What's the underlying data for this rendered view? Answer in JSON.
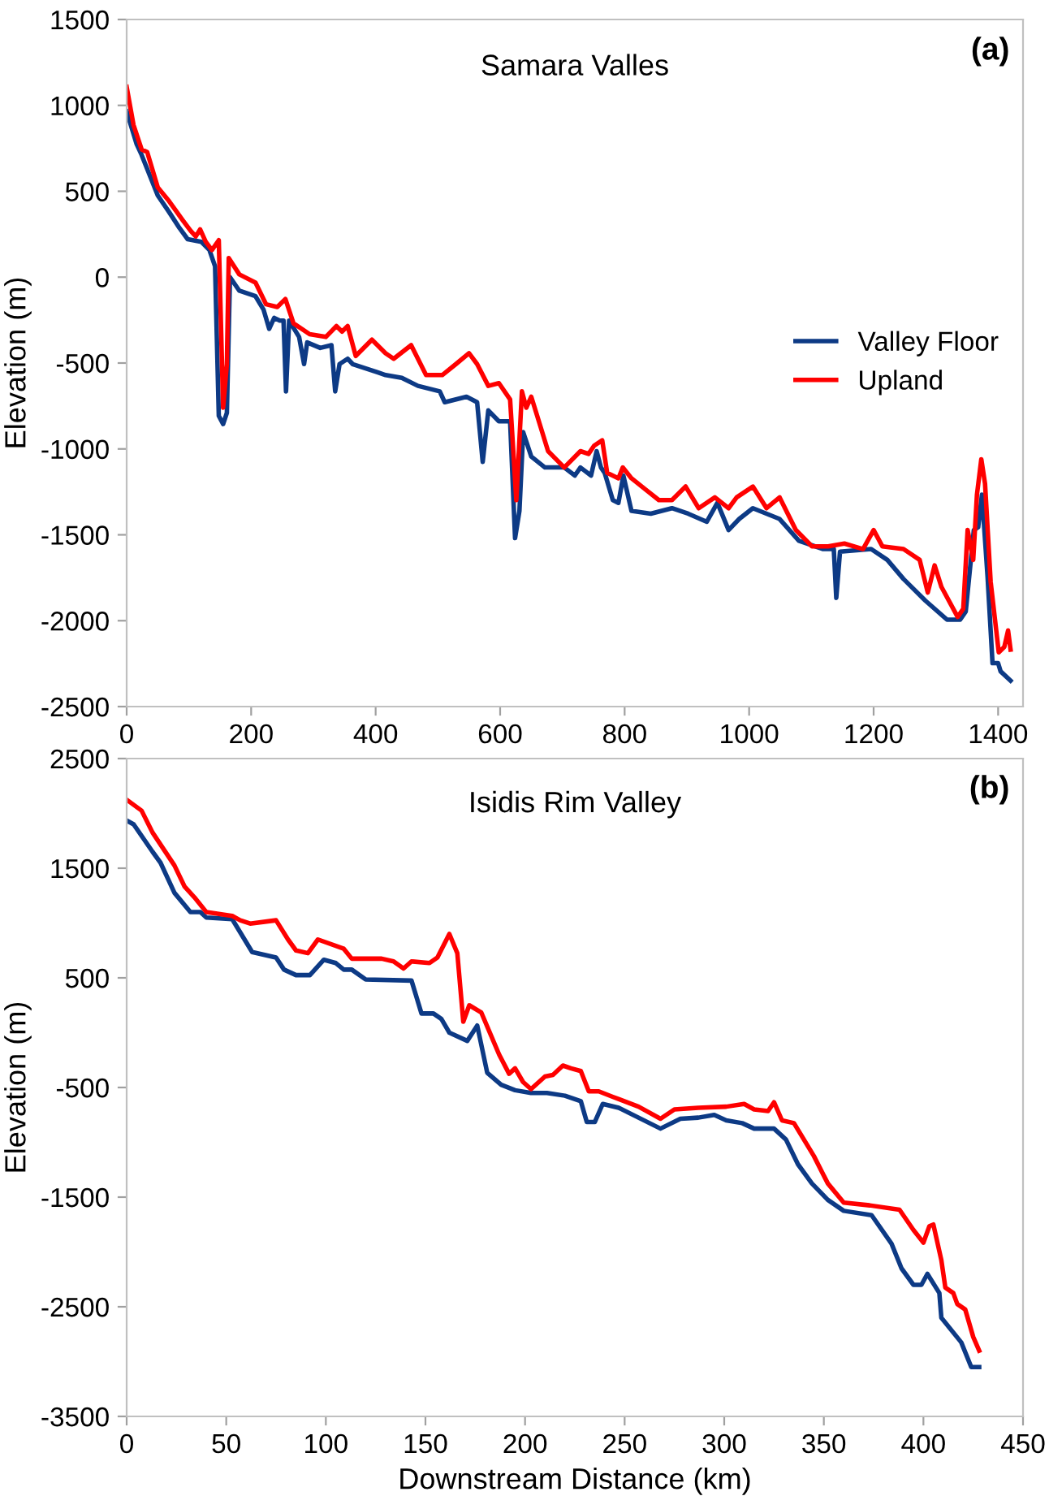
{
  "chart_data": [
    {
      "type": "line",
      "title": "Samara Valles",
      "ylabel": "Elevation (m)",
      "annotations": [
        "(a)"
      ],
      "legend": "center right",
      "grid": false,
      "xlim": [
        0,
        1440
      ],
      "xticks": [
        0,
        200,
        400,
        600,
        800,
        1000,
        1200,
        1400
      ],
      "ylim": [
        -2500,
        1500
      ],
      "yticks": [
        -2500,
        -2000,
        -1500,
        -1000,
        -500,
        0,
        500,
        1000,
        1500
      ],
      "series": [
        {
          "name": "Valley Floor",
          "color": "#0d3a85",
          "x": [
            0,
            16,
            24,
            50,
            68,
            85,
            98,
            120,
            133,
            142,
            148,
            155,
            161,
            166,
            181,
            207,
            220,
            229,
            237,
            246,
            252,
            256,
            261,
            277,
            285,
            290,
            311,
            329,
            335,
            342,
            355,
            363,
            390,
            403,
            416,
            442,
            468,
            503,
            511,
            546,
            563,
            572,
            581,
            598,
            616,
            624,
            631,
            637,
            650,
            672,
            703,
            720,
            729,
            746,
            755,
            762,
            768,
            781,
            790,
            798,
            811,
            842,
            876,
            902,
            932,
            949,
            967,
            984,
            1006,
            1049,
            1080,
            1119,
            1136,
            1140,
            1146,
            1196,
            1222,
            1248,
            1283,
            1318,
            1339,
            1348,
            1361,
            1368,
            1374,
            1383,
            1391,
            1400,
            1404,
            1420
          ],
          "values": [
            965,
            775,
            712,
            475,
            380,
            285,
            221,
            206,
            158,
            63,
            -807,
            -855,
            -790,
            0,
            -79,
            -111,
            -190,
            -301,
            -237,
            -253,
            -253,
            -665,
            -253,
            -348,
            -506,
            -380,
            -412,
            -396,
            -665,
            -506,
            -475,
            -506,
            -538,
            -554,
            -570,
            -586,
            -633,
            -665,
            -728,
            -696,
            -728,
            -1076,
            -776,
            -839,
            -839,
            -1519,
            -1361,
            -902,
            -1044,
            -1108,
            -1108,
            -1155,
            -1108,
            -1155,
            -1013,
            -1108,
            -1140,
            -1298,
            -1314,
            -1155,
            -1361,
            -1377,
            -1345,
            -1377,
            -1424,
            -1314,
            -1472,
            -1408,
            -1345,
            -1408,
            -1535,
            -1583,
            -1583,
            -1867,
            -1598,
            -1583,
            -1646,
            -1757,
            -1883,
            -1994,
            -1994,
            -1946,
            -1472,
            -1456,
            -1266,
            -1741,
            -2247,
            -2247,
            -2295,
            -2349
          ]
        },
        {
          "name": "Upland",
          "color": "#ff0000",
          "x": [
            0,
            11,
            24,
            33,
            50,
            68,
            90,
            103,
            111,
            118,
            127,
            137,
            148,
            155,
            161,
            164,
            181,
            207,
            224,
            242,
            255,
            268,
            294,
            320,
            337,
            346,
            355,
            368,
            394,
            416,
            429,
            457,
            481,
            507,
            529,
            550,
            563,
            581,
            598,
            616,
            626,
            635,
            642,
            650,
            677,
            703,
            729,
            742,
            751,
            764,
            772,
            790,
            797,
            811,
            833,
            855,
            876,
            898,
            919,
            945,
            967,
            980,
            1006,
            1028,
            1049,
            1075,
            1101,
            1127,
            1153,
            1183,
            1200,
            1214,
            1248,
            1274,
            1287,
            1298,
            1309,
            1335,
            1344,
            1351,
            1360,
            1366,
            1373,
            1379,
            1388,
            1401,
            1410,
            1416,
            1420
          ],
          "values": [
            1108,
            886,
            744,
            728,
            522,
            443,
            332,
            269,
            237,
            278,
            206,
            158,
            215,
            -760,
            -506,
            111,
            16,
            -32,
            -158,
            -174,
            -127,
            -269,
            -332,
            -348,
            -285,
            -317,
            -285,
            -459,
            -364,
            -443,
            -475,
            -396,
            -570,
            -570,
            -506,
            -443,
            -506,
            -633,
            -617,
            -712,
            -1298,
            -665,
            -760,
            -696,
            -1013,
            -1108,
            -1013,
            -1029,
            -981,
            -950,
            -1140,
            -1171,
            -1108,
            -1171,
            -1235,
            -1298,
            -1298,
            -1219,
            -1345,
            -1282,
            -1345,
            -1282,
            -1219,
            -1345,
            -1282,
            -1472,
            -1567,
            -1567,
            -1551,
            -1583,
            -1472,
            -1567,
            -1583,
            -1646,
            -1836,
            -1678,
            -1804,
            -1978,
            -1931,
            -1472,
            -1646,
            -1266,
            -1060,
            -1203,
            -1773,
            -2184,
            -2152,
            -2057,
            -2168
          ]
        }
      ]
    },
    {
      "type": "line",
      "title": "Isidis Rim Valley",
      "xlabel": "Downstream Distance (km)",
      "ylabel": "Elevation (m)",
      "annotations": [
        "(b)"
      ],
      "grid": false,
      "xlim": [
        0,
        450
      ],
      "xticks": [
        0,
        50,
        100,
        150,
        200,
        250,
        300,
        350,
        400,
        450
      ],
      "ylim": [
        -3500,
        2500
      ],
      "yticks": [
        -3500,
        -2500,
        -1500,
        -500,
        500,
        1500,
        2500
      ],
      "series": [
        {
          "color": "#0d3a85",
          "x": [
            0,
            3.5,
            13,
            17,
            24,
            32,
            37,
            40,
            53,
            63,
            75,
            79,
            85,
            92,
            99,
            105,
            109,
            113,
            120,
            143,
            148,
            154,
            158,
            162,
            171,
            176,
            181,
            188,
            195,
            203,
            211,
            220,
            228,
            231,
            235,
            239,
            247,
            268,
            278,
            287,
            295,
            301,
            309,
            315,
            325,
            331,
            337,
            344,
            352,
            360,
            374,
            384,
            389,
            395,
            399,
            402,
            408,
            409,
            419,
            424,
            428
          ],
          "values": [
            1935,
            1900,
            1650,
            1550,
            1275,
            1100,
            1100,
            1050,
            1035,
            735,
            685,
            575,
            525,
            525,
            665,
            635,
            575,
            575,
            485,
            475,
            175,
            175,
            125,
            0,
            -75,
            65,
            -365,
            -475,
            -525,
            -550,
            -550,
            -575,
            -625,
            -815,
            -815,
            -650,
            -685,
            -875,
            -785,
            -775,
            -750,
            -800,
            -825,
            -875,
            -875,
            -975,
            -1200,
            -1375,
            -1525,
            -1625,
            -1665,
            -1925,
            -2150,
            -2300,
            -2300,
            -2200,
            -2375,
            -2600,
            -2825,
            -3050,
            -3050
          ]
        },
        {
          "color": "#ff0000",
          "x": [
            0,
            7.5,
            13,
            24,
            29,
            34,
            40,
            53,
            57,
            62,
            75,
            81,
            85,
            91,
            96,
            109,
            113,
            128,
            134,
            139,
            143,
            152,
            156,
            162,
            166,
            169,
            172,
            178,
            187,
            192,
            195,
            199,
            203,
            210,
            214,
            219,
            223,
            228,
            232,
            237,
            244,
            257,
            268,
            275,
            287,
            301,
            310,
            315,
            322,
            325,
            329,
            335,
            345,
            352,
            360,
            373,
            388,
            395,
            400,
            403,
            405,
            409,
            411,
            415,
            417,
            421,
            425,
            428
          ],
          "values": [
            2125,
            2025,
            1825,
            1525,
            1335,
            1235,
            1100,
            1065,
            1025,
            995,
            1025,
            850,
            750,
            725,
            850,
            765,
            675,
            675,
            650,
            585,
            650,
            635,
            685,
            900,
            725,
            100,
            250,
            185,
            -200,
            -375,
            -325,
            -450,
            -515,
            -400,
            -385,
            -300,
            -325,
            -350,
            -535,
            -535,
            -585,
            -675,
            -785,
            -700,
            -685,
            -675,
            -650,
            -700,
            -715,
            -635,
            -800,
            -825,
            -1125,
            -1375,
            -1550,
            -1575,
            -1615,
            -1800,
            -1915,
            -1765,
            -1750,
            -2075,
            -2325,
            -2375,
            -2475,
            -2525,
            -2775,
            -2900
          ]
        }
      ]
    }
  ]
}
